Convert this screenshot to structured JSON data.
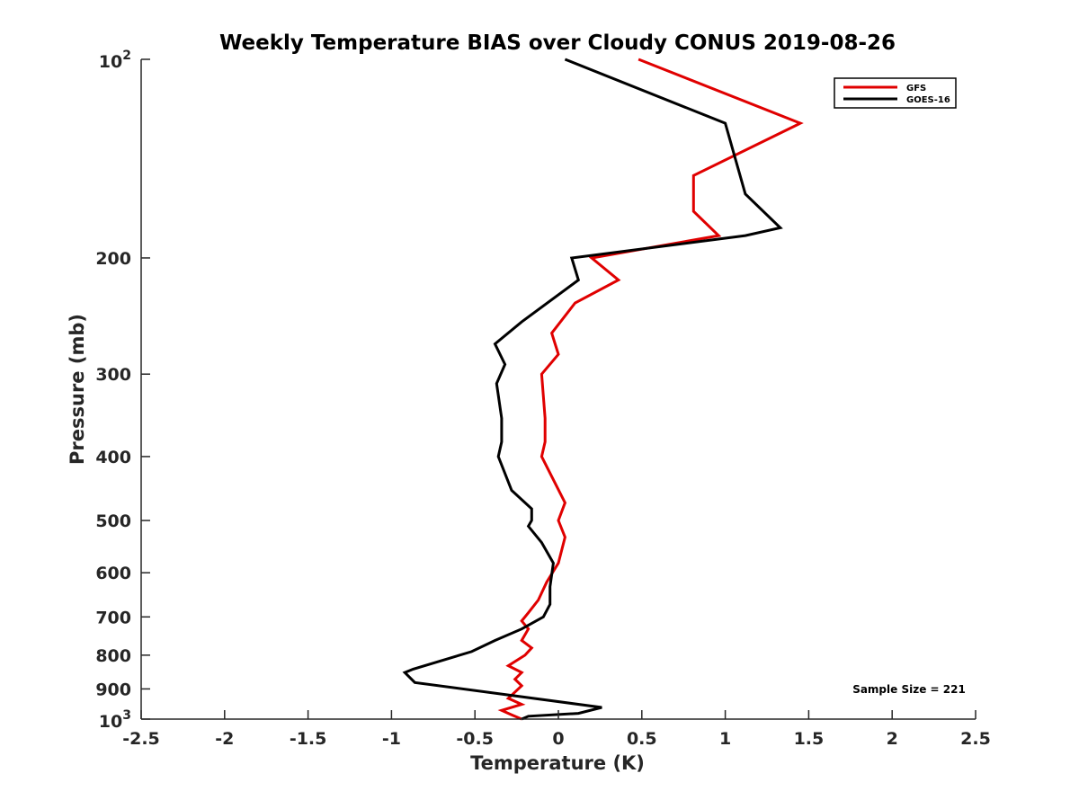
{
  "chart_data": {
    "type": "line",
    "title": "Weekly Temperature BIAS over Cloudy CONUS 2019-08-26",
    "xlabel": "Temperature (K)",
    "ylabel": "Pressure (mb)",
    "xlim": [
      -2.5,
      2.5
    ],
    "ylim": [
      100,
      1000
    ],
    "y_scale": "log",
    "y_reversed": true,
    "x_ticks": [
      "-2.5",
      "-2",
      "-1.5",
      "-1",
      "-0.5",
      "0",
      "0.5",
      "1",
      "1.5",
      "2",
      "2.5"
    ],
    "x_tick_values": [
      -2.5,
      -2,
      -1.5,
      -1,
      -0.5,
      0,
      0.5,
      1,
      1.5,
      2,
      2.5
    ],
    "y_ticks": [
      {
        "value": 100,
        "base": "10",
        "exp": "2"
      },
      {
        "value": 200,
        "label": "200"
      },
      {
        "value": 300,
        "label": "300"
      },
      {
        "value": 400,
        "label": "400"
      },
      {
        "value": 500,
        "label": "500"
      },
      {
        "value": 600,
        "label": "600"
      },
      {
        "value": 700,
        "label": "700"
      },
      {
        "value": 800,
        "label": "800"
      },
      {
        "value": 900,
        "label": "900"
      },
      {
        "value": 1000,
        "base": "10",
        "exp": "3"
      }
    ],
    "legend_position": "top-right",
    "grid": false,
    "annotation": "Sample Size = 221",
    "series": [
      {
        "name": "GFS",
        "color": "#e00000",
        "points": [
          [
            0.48,
            100
          ],
          [
            1.45,
            125
          ],
          [
            0.81,
            150
          ],
          [
            0.81,
            170
          ],
          [
            0.96,
            185
          ],
          [
            0.2,
            200
          ],
          [
            0.36,
            216
          ],
          [
            0.1,
            234
          ],
          [
            -0.04,
            260
          ],
          [
            0.0,
            280
          ],
          [
            -0.1,
            300
          ],
          [
            -0.08,
            350
          ],
          [
            -0.08,
            380
          ],
          [
            -0.1,
            400
          ],
          [
            0.04,
            470
          ],
          [
            0.0,
            500
          ],
          [
            0.04,
            530
          ],
          [
            0.0,
            580
          ],
          [
            -0.07,
            620
          ],
          [
            -0.12,
            660
          ],
          [
            -0.18,
            690
          ],
          [
            -0.22,
            710
          ],
          [
            -0.18,
            730
          ],
          [
            -0.22,
            760
          ],
          [
            -0.16,
            780
          ],
          [
            -0.2,
            800
          ],
          [
            -0.3,
            830
          ],
          [
            -0.22,
            850
          ],
          [
            -0.26,
            870
          ],
          [
            -0.22,
            890
          ],
          [
            -0.3,
            930
          ],
          [
            -0.22,
            950
          ],
          [
            -0.34,
            970
          ],
          [
            -0.28,
            985
          ],
          [
            -0.22,
            1000
          ]
        ]
      },
      {
        "name": "GOES-16",
        "color": "#000000",
        "points": [
          [
            0.04,
            100
          ],
          [
            1.0,
            125
          ],
          [
            1.12,
            160
          ],
          [
            1.33,
            180
          ],
          [
            1.12,
            185
          ],
          [
            0.08,
            200
          ],
          [
            0.12,
            216
          ],
          [
            -0.22,
            250
          ],
          [
            -0.38,
            270
          ],
          [
            -0.32,
            290
          ],
          [
            -0.37,
            310
          ],
          [
            -0.34,
            350
          ],
          [
            -0.34,
            380
          ],
          [
            -0.36,
            400
          ],
          [
            -0.28,
            450
          ],
          [
            -0.16,
            480
          ],
          [
            -0.16,
            500
          ],
          [
            -0.18,
            510
          ],
          [
            -0.1,
            540
          ],
          [
            -0.03,
            580
          ],
          [
            -0.05,
            630
          ],
          [
            -0.05,
            670
          ],
          [
            -0.09,
            700
          ],
          [
            -0.22,
            730
          ],
          [
            -0.38,
            760
          ],
          [
            -0.52,
            790
          ],
          [
            -0.87,
            840
          ],
          [
            -0.92,
            850
          ],
          [
            -0.86,
            880
          ],
          [
            0.26,
            960
          ],
          [
            0.12,
            980
          ],
          [
            -0.18,
            990
          ],
          [
            -0.22,
            1000
          ]
        ]
      }
    ]
  }
}
